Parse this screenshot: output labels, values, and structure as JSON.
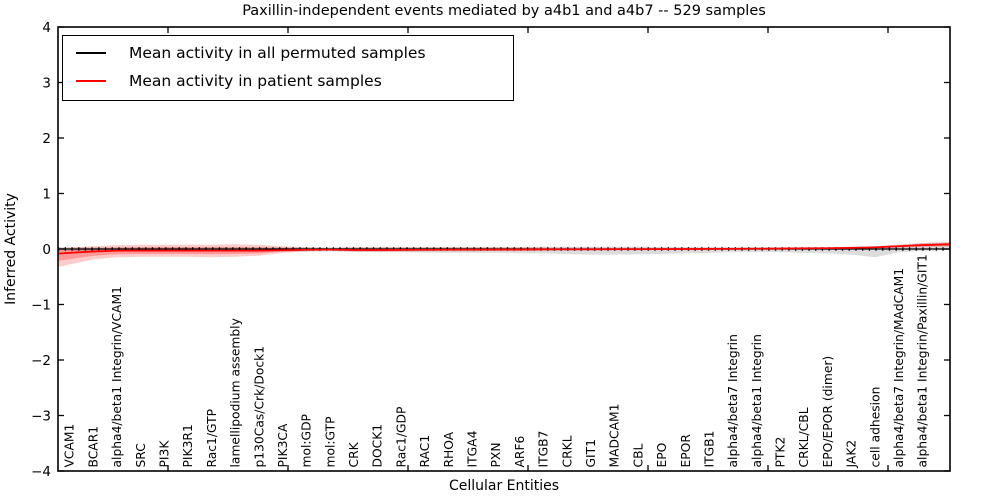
{
  "chart_data": {
    "type": "line",
    "title": "Paxillin-independent events mediated by a4b1 and a4b7 -- 529 samples",
    "xlabel": "Cellular Entities",
    "ylabel": "Inferred Activity",
    "ylim": [
      -4,
      4
    ],
    "yticks": [
      4,
      3,
      2,
      1,
      0,
      -1,
      -2,
      -3,
      -4
    ],
    "ytick_labels": [
      "4",
      "3",
      "2",
      "1",
      "0",
      "−1",
      "−2",
      "−3",
      "−4"
    ],
    "grid": false,
    "legend_position": "upper left",
    "categories": [
      "VCAM1",
      "BCAR1",
      "alpha4/beta1 Integrin/VCAM1",
      "SRC",
      "PI3K",
      "PIK3R1",
      "Rac1/GTP",
      "lamellipodium assembly",
      "p130Cas/Crk/Dock1",
      "PIK3CA",
      "mol:GDP",
      "mol:GTP",
      "CRK",
      "DOCK1",
      "Rac1/GDP",
      "RAC1",
      "RHOA",
      "ITGA4",
      "PXN",
      "ARF6",
      "ITGB7",
      "CRKL",
      "GIT1",
      "MADCAM1",
      "CBL",
      "EPO",
      "EPOR",
      "ITGB1",
      "alpha4/beta7 Integrin",
      "alpha4/beta1 Integrin",
      "PTK2",
      "CRKL/CBL",
      "EPO/EPOR (dimer)",
      "JAK2",
      "cell adhesion",
      "alpha4/beta7 Integrin/MAdCAM1",
      "alpha4/beta1 Integrin/Paxillin/GIT1"
    ],
    "series": [
      {
        "name": "Mean activity in all permuted samples",
        "color": "#000000",
        "band_color": "#808080",
        "line_style": "solid-with-dots",
        "values": [
          0,
          0,
          0,
          0,
          0,
          0,
          0,
          0,
          0,
          0,
          0,
          0,
          0,
          0,
          0,
          0,
          0,
          0,
          0,
          0,
          0,
          0,
          0,
          0,
          0,
          0,
          0,
          0,
          0,
          0,
          0,
          0,
          0,
          0,
          0,
          0,
          0
        ],
        "band_lower": [
          -0.04,
          -0.04,
          -0.04,
          -0.04,
          -0.04,
          -0.04,
          -0.04,
          -0.04,
          -0.045,
          -0.05,
          -0.05,
          -0.045,
          -0.05,
          -0.055,
          -0.06,
          -0.065,
          -0.07,
          -0.07,
          -0.07,
          -0.075,
          -0.08,
          -0.09,
          -0.1,
          -0.1,
          -0.095,
          -0.09,
          -0.08,
          -0.07,
          -0.06,
          -0.055,
          -0.06,
          -0.07,
          -0.08,
          -0.1,
          -0.15,
          -0.06,
          -0.03
        ],
        "band_upper": [
          0.03,
          0.03,
          0.03,
          0.03,
          0.03,
          0.03,
          0.03,
          0.03,
          0.03,
          0.03,
          0.03,
          0.03,
          0.03,
          0.032,
          0.034,
          0.035,
          0.035,
          0.035,
          0.035,
          0.035,
          0.04,
          0.04,
          0.04,
          0.04,
          0.04,
          0.038,
          0.036,
          0.034,
          0.032,
          0.03,
          0.03,
          0.032,
          0.035,
          0.04,
          0.05,
          0.07,
          0.1
        ]
      },
      {
        "name": "Mean activity in patient samples",
        "color": "#ff0000",
        "band_color": "#ff0000",
        "line_style": "solid",
        "values": [
          -0.07,
          -0.045,
          -0.03,
          -0.028,
          -0.028,
          -0.028,
          -0.03,
          -0.03,
          -0.028,
          -0.022,
          -0.015,
          -0.012,
          -0.018,
          -0.018,
          -0.016,
          -0.014,
          -0.012,
          -0.012,
          -0.01,
          -0.01,
          -0.008,
          -0.006,
          -0.005,
          -0.004,
          -0.003,
          -0.002,
          0.0,
          0.002,
          0.004,
          0.006,
          0.008,
          0.01,
          0.015,
          0.02,
          0.03,
          0.05,
          0.07
        ],
        "band_lower": [
          -0.28,
          -0.19,
          -0.15,
          -0.14,
          -0.14,
          -0.14,
          -0.15,
          -0.14,
          -0.12,
          -0.07,
          -0.04,
          -0.02,
          -0.05,
          -0.05,
          -0.045,
          -0.04,
          -0.04,
          -0.04,
          -0.035,
          -0.03,
          -0.03,
          -0.03,
          -0.03,
          -0.028,
          -0.026,
          -0.024,
          -0.02,
          -0.02,
          -0.018,
          -0.015,
          -0.012,
          -0.01,
          -0.005,
          0.0,
          0.005,
          0.02,
          0.035
        ],
        "band_upper": [
          0.025,
          0.05,
          0.07,
          0.075,
          0.08,
          0.08,
          0.08,
          0.085,
          0.075,
          0.05,
          0.03,
          0.015,
          0.03,
          0.03,
          0.03,
          0.03,
          0.035,
          0.035,
          0.03,
          0.03,
          0.028,
          0.026,
          0.025,
          0.024,
          0.022,
          0.02,
          0.02,
          0.022,
          0.025,
          0.028,
          0.03,
          0.032,
          0.035,
          0.04,
          0.05,
          0.08,
          0.11
        ]
      }
    ]
  }
}
